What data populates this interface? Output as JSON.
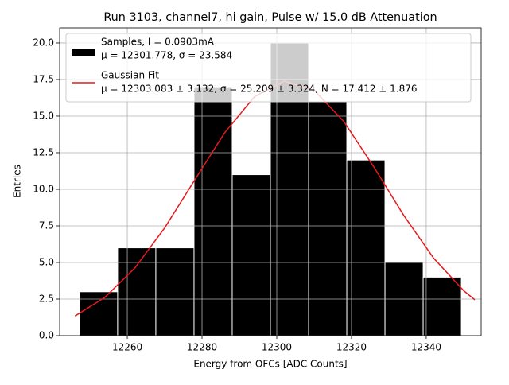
{
  "chart_data": {
    "type": "histogram",
    "title": "Run 3103, channel7, hi gain, Pulse w/ 15.0 dB Attenuation",
    "xlabel": "Energy from OFCs [ADC Counts]",
    "ylabel": "Entries",
    "xlim": [
      12241.9,
      12354.7
    ],
    "ylim": [
      0,
      21.03
    ],
    "xticks": [
      12260,
      12280,
      12300,
      12320,
      12340
    ],
    "yticks": [
      {
        "value": 0,
        "label": "0.0"
      },
      2.5,
      {
        "value": 5,
        "label": "5.0"
      },
      7.5,
      {
        "value": 10,
        "label": "10.0"
      },
      12.5,
      {
        "value": 15,
        "label": "15.0"
      },
      17.5,
      {
        "value": 20,
        "label": "20.0"
      }
    ],
    "grid": true,
    "legend": "upper left",
    "histogram": {
      "name": "Samples, I = 0.0903mA",
      "stats": "μ = 12301.778, σ = 23.584",
      "color": "#000000",
      "bins": [
        12247.2,
        12257.42,
        12267.64,
        12277.86,
        12288.08,
        12298.3,
        12308.52,
        12318.74,
        12328.96,
        12339.18,
        12349.4
      ],
      "counts": [
        3,
        6,
        6,
        17,
        11,
        20,
        16,
        12,
        5,
        4
      ]
    },
    "fit": {
      "name": "Gaussian Fit",
      "stats": "μ = 12303.083 ± 3.132, σ = 25.209 ± 3.324, N = 17.412 ± 1.876",
      "color": "#e41a1c",
      "x": [
        12246,
        12254,
        12262,
        12270,
        12278,
        12286,
        12294,
        12302,
        12310,
        12318,
        12326,
        12334,
        12342,
        12350,
        12353
      ],
      "y": [
        1.341,
        2.615,
        4.614,
        7.36,
        10.615,
        13.839,
        16.318,
        17.396,
        16.77,
        14.616,
        11.518,
        8.208,
        5.288,
        3.08,
        2.452
      ]
    }
  }
}
